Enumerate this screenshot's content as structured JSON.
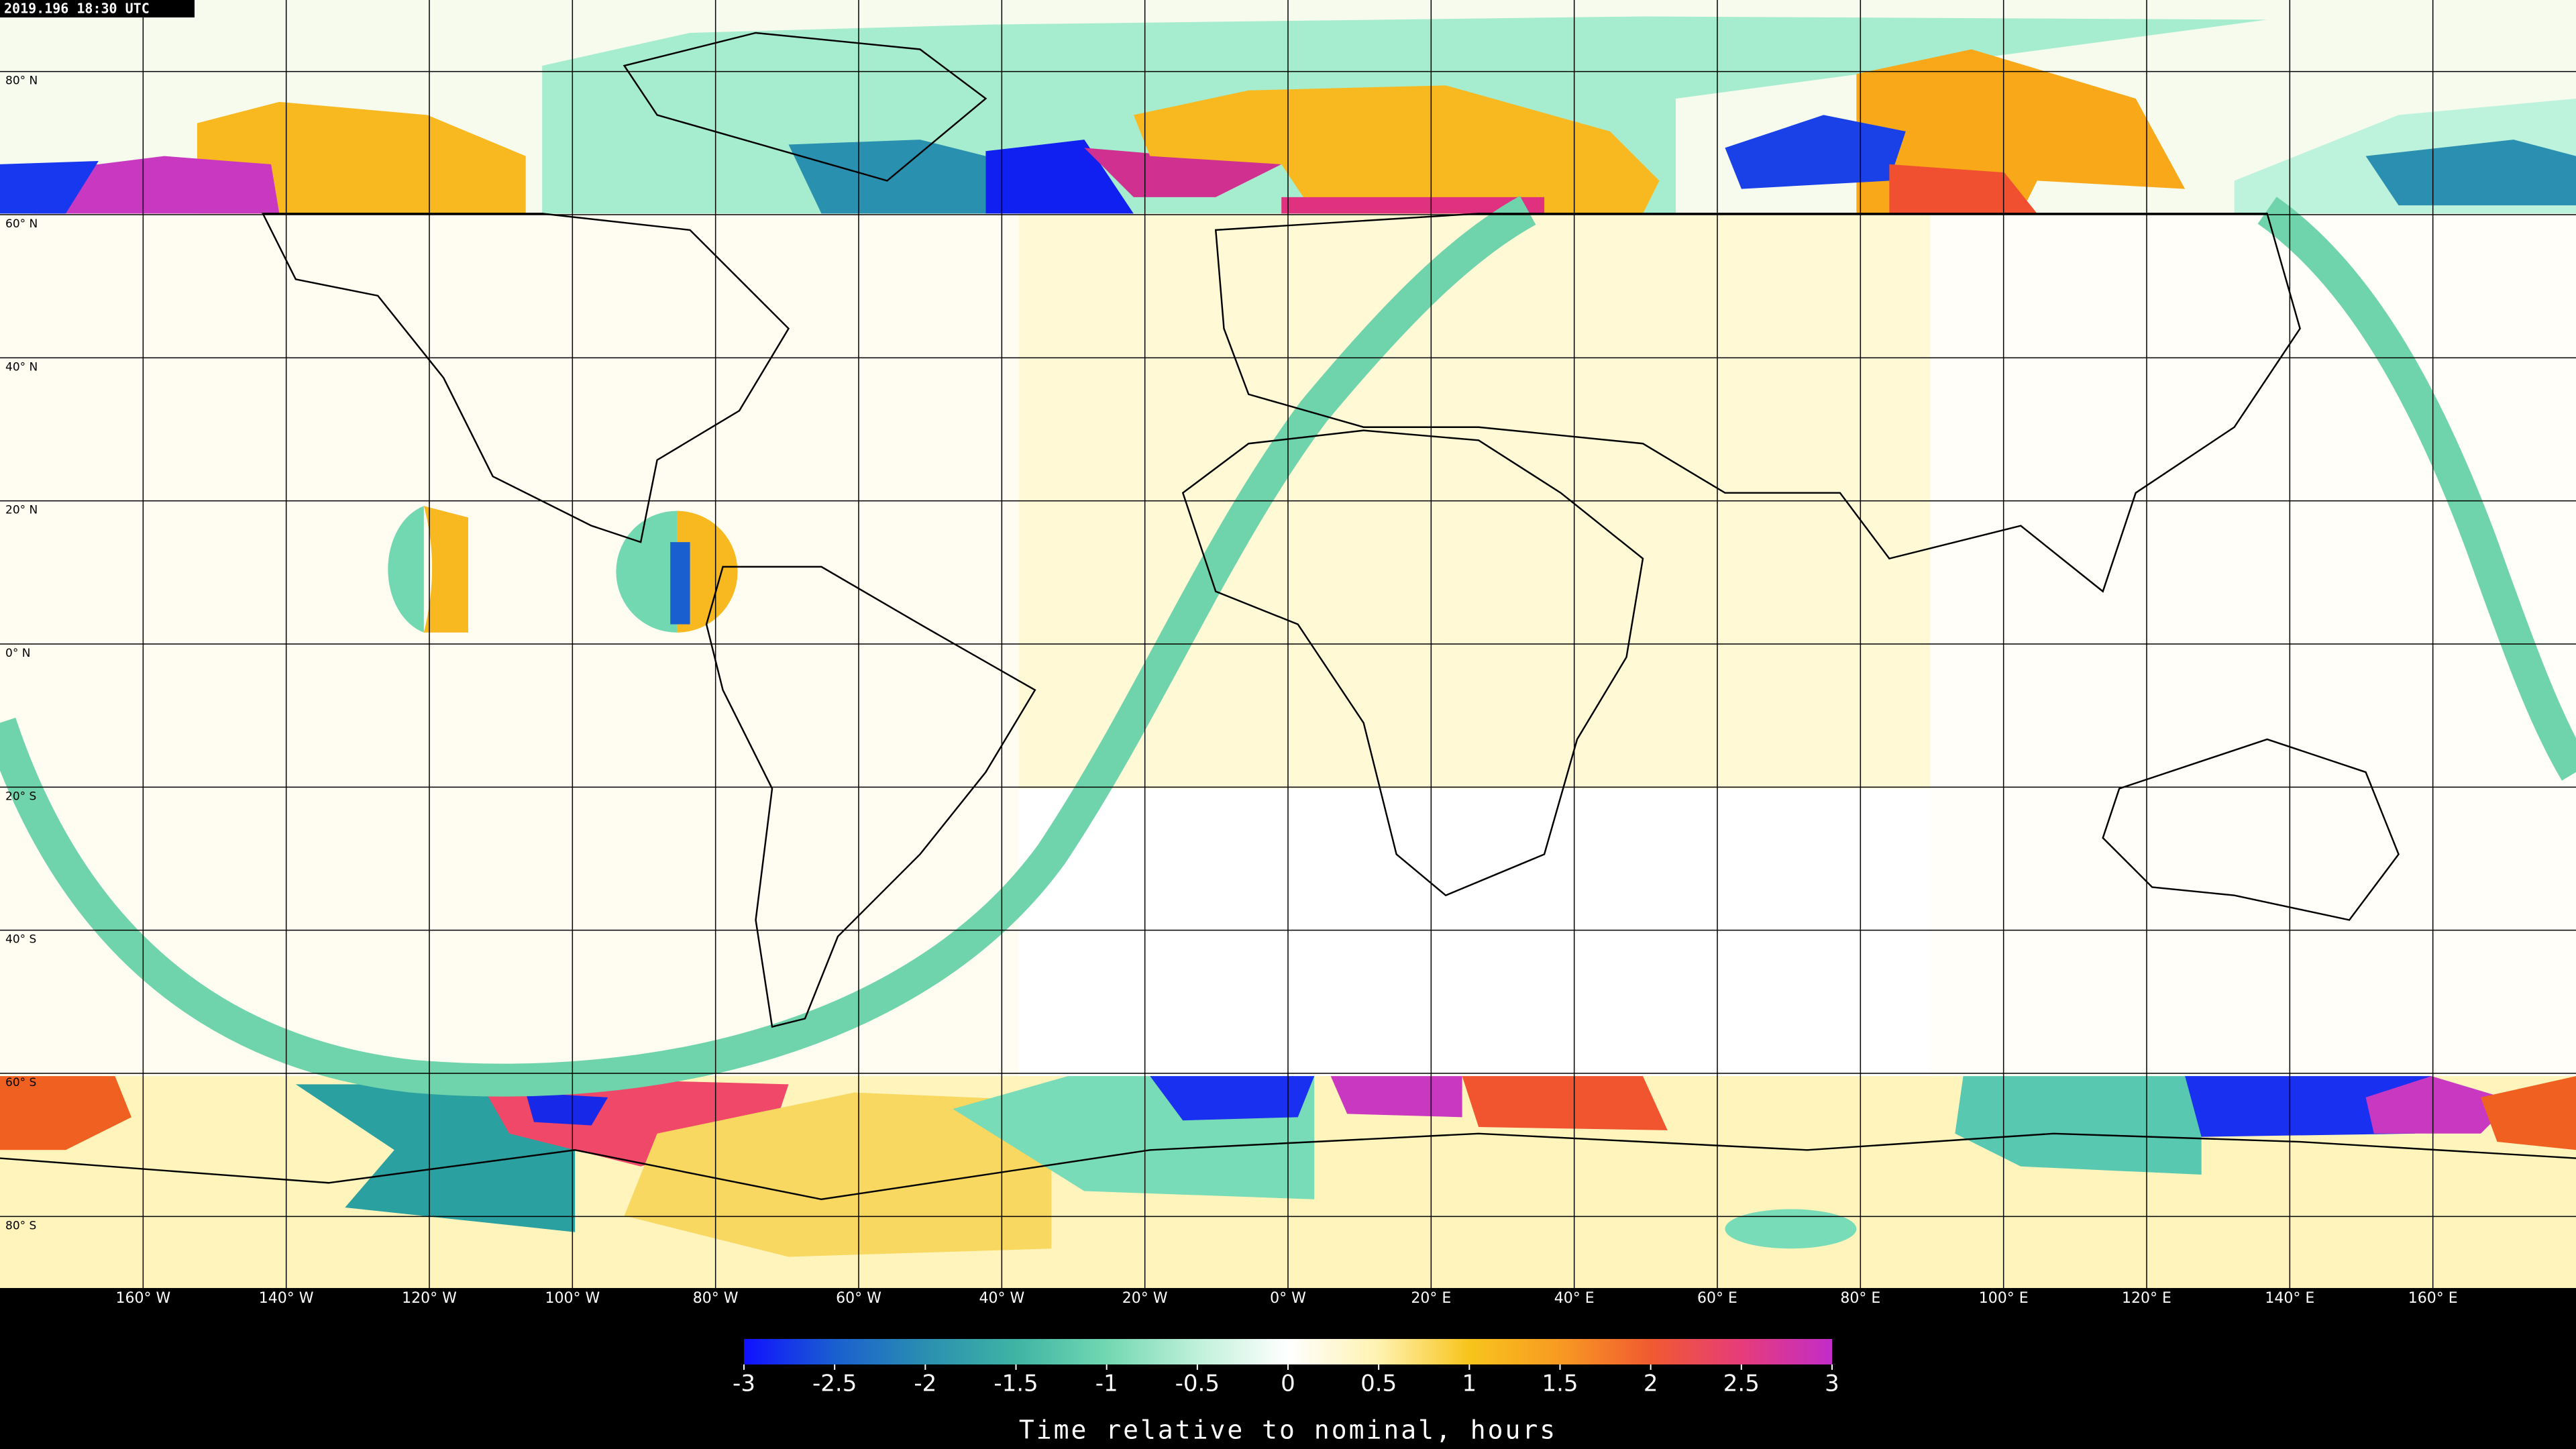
{
  "header": {
    "timestamp": "2019.196 18:30 UTC"
  },
  "map": {
    "lat_labels": [
      "80° N",
      "60° N",
      "40° N",
      "20° N",
      "0° N",
      "20° S",
      "40° S",
      "60° S",
      "80° S"
    ],
    "lon_labels": [
      "160° W",
      "140° W",
      "120° W",
      "100° W",
      "80° W",
      "60° W",
      "40° W",
      "20° W",
      "0° W",
      "20° E",
      "40° E",
      "60° E",
      "80° E",
      "100° E",
      "120° E",
      "140° E",
      "160° E"
    ]
  },
  "colorbar": {
    "ticks": [
      -3,
      -2.5,
      -2,
      -1.5,
      -1,
      -0.5,
      0,
      0.5,
      1,
      1.5,
      2,
      2.5,
      3
    ],
    "colors": [
      "#1010ff",
      "#1a5fd0",
      "#2a8fb0",
      "#3fb4a4",
      "#72d8b2",
      "#bff0da",
      "#ffffff",
      "#fff2b0",
      "#f8c41c",
      "#f89a22",
      "#f05a30",
      "#e63c7a",
      "#c22cc8"
    ],
    "label": "Time relative to nominal, hours"
  }
}
